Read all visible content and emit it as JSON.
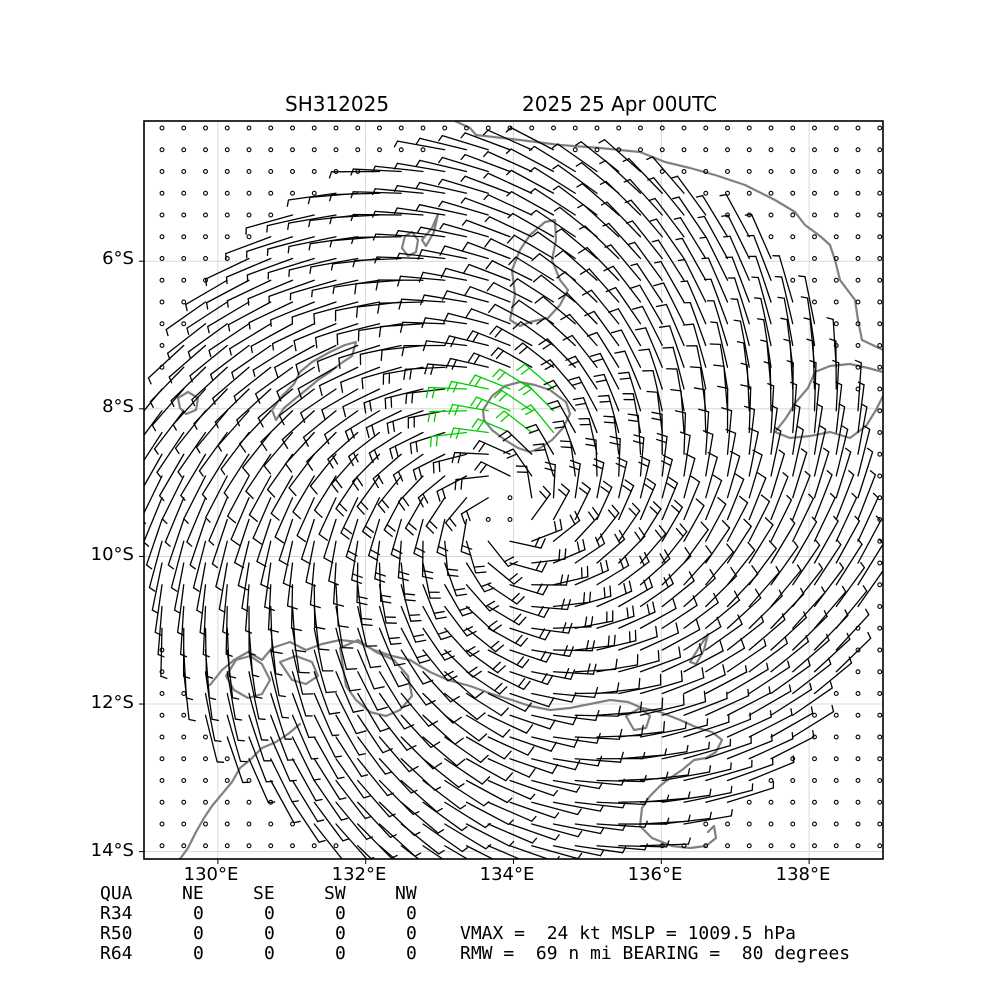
{
  "header": {
    "storm_id": "SH312025",
    "valid_time": "2025 25 Apr 00UTC"
  },
  "map": {
    "lat_labels": [
      "6°S",
      "8°S",
      "10°S",
      "12°S",
      "14°S"
    ],
    "lon_labels": [
      "130°E",
      "132°E",
      "134°E",
      "136°E",
      "138°E"
    ],
    "lat_range": [
      -14.1,
      -4.1
    ],
    "lon_range": [
      129.0,
      139.0
    ],
    "lat_ticks": [
      -6,
      -8,
      -10,
      -12,
      -14
    ],
    "lon_ticks": [
      130,
      132,
      134,
      136,
      138
    ],
    "grid": true,
    "colors": {
      "barb": "#000000",
      "barb_34kt": "#00cc00",
      "coastline": "#808080",
      "calm_marker": "#000000"
    },
    "vortex_center": {
      "lat": -9.4,
      "lon": 133.9
    },
    "inflow_angle_deg": 20
  },
  "table": {
    "headers": [
      "QUA",
      "NE",
      "SE",
      "SW",
      "NW"
    ],
    "rows": [
      {
        "label": "R34",
        "values": [
          "0",
          "0",
          "0",
          "0"
        ]
      },
      {
        "label": "R50",
        "values": [
          "0",
          "0",
          "0",
          "0"
        ]
      },
      {
        "label": "R64",
        "values": [
          "0",
          "0",
          "0",
          "0"
        ]
      }
    ]
  },
  "info": {
    "line1": "VMAX =  24 kt MSLP = 1009.5 hPa",
    "line2": "RMW =  69 n mi BEARING =  80 degrees"
  }
}
